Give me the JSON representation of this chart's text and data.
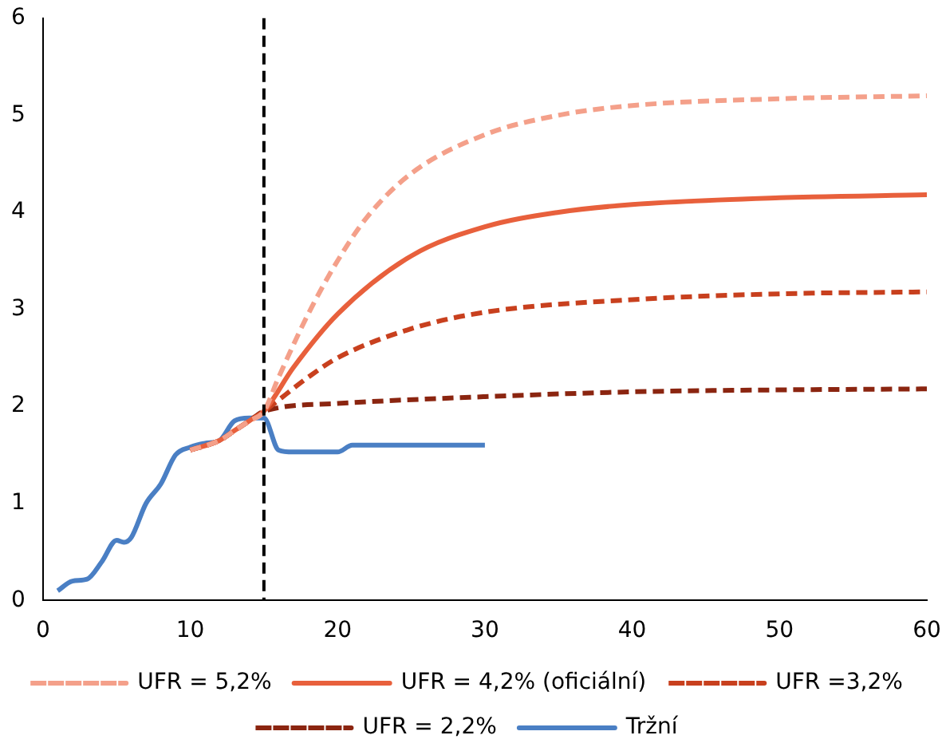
{
  "chart_data": {
    "type": "line",
    "xlim": [
      0,
      60
    ],
    "ylim": [
      0,
      6
    ],
    "xticks": [
      0,
      10,
      20,
      30,
      40,
      50,
      60
    ],
    "yticks": [
      0,
      1,
      2,
      3,
      4,
      5,
      6
    ],
    "grid": false,
    "legend": "bottom",
    "marker": "none",
    "ref_lines": [
      {
        "axis": "x",
        "value": 15,
        "color": "#000000",
        "line_style": "dashed"
      }
    ],
    "series": [
      {
        "name": "UFR = 5,2%",
        "color": "#f4a08a",
        "line_style": "dashed",
        "x": [
          10,
          12,
          13,
          14,
          15,
          16,
          18,
          20,
          22,
          25,
          30,
          35,
          40,
          50,
          60
        ],
        "values": [
          1.55,
          1.65,
          1.75,
          1.85,
          1.95,
          2.3,
          2.95,
          3.5,
          3.95,
          4.4,
          4.8,
          5.0,
          5.1,
          5.17,
          5.2
        ]
      },
      {
        "name": "UFR = 4,2% (oficiální)",
        "color": "#e8603c",
        "line_style": "solid",
        "x": [
          10,
          12,
          13,
          14,
          15,
          17,
          20,
          25,
          30,
          35,
          40,
          50,
          60
        ],
        "values": [
          1.55,
          1.65,
          1.75,
          1.85,
          1.95,
          2.4,
          2.95,
          3.55,
          3.85,
          4.0,
          4.08,
          4.15,
          4.18
        ]
      },
      {
        "name": "UFR =3,2%",
        "color": "#c8401e",
        "line_style": "dashed",
        "x": [
          10,
          12,
          13,
          14,
          15,
          18,
          20,
          25,
          30,
          40,
          50,
          60
        ],
        "values": [
          1.55,
          1.65,
          1.75,
          1.85,
          1.95,
          2.3,
          2.5,
          2.8,
          2.97,
          3.1,
          3.16,
          3.18
        ]
      },
      {
        "name": "UFR = 2,2%",
        "color": "#8b2510",
        "line_style": "dashed",
        "x": [
          10,
          12,
          13,
          14,
          15,
          20,
          30,
          40,
          50,
          60
        ],
        "values": [
          1.55,
          1.65,
          1.75,
          1.85,
          1.95,
          2.03,
          2.1,
          2.15,
          2.17,
          2.18
        ]
      },
      {
        "name": "Tržní",
        "color": "#4a7fc4",
        "line_style": "solid",
        "x": [
          1,
          2,
          3,
          4,
          5,
          5.5,
          6,
          7,
          8,
          9,
          10,
          11,
          12,
          13,
          14,
          15,
          16,
          17,
          20,
          21,
          30
        ],
        "values": [
          0.1,
          0.2,
          0.22,
          0.4,
          0.62,
          0.6,
          0.65,
          1.0,
          1.2,
          1.5,
          1.58,
          1.62,
          1.65,
          1.85,
          1.88,
          1.88,
          1.55,
          1.53,
          1.53,
          1.6,
          1.6
        ]
      }
    ]
  }
}
